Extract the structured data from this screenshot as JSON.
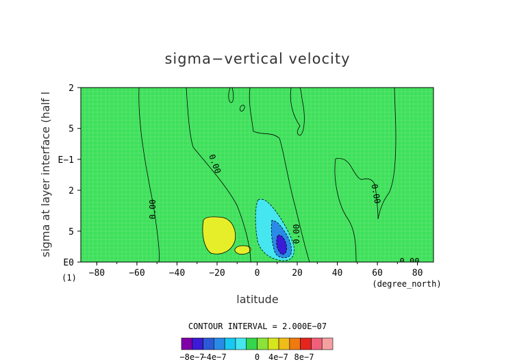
{
  "chart_data": {
    "type": "heatmap",
    "title": "sigma−vertical velocity",
    "xlabel": "latitude",
    "ylabel": "sigma at layer interface (half l",
    "x_unit": "(degree_north)",
    "y_unit": "(1)",
    "x_ticks": [
      "−80",
      "−60",
      "−40",
      "−20",
      "0",
      "20",
      "40",
      "60",
      "80"
    ],
    "x_tick_values": [
      -80,
      -60,
      -40,
      -20,
      0,
      20,
      40,
      60,
      80
    ],
    "xlim": [
      -88,
      88
    ],
    "y_ticks": [
      "2",
      "5",
      "E−1",
      "2",
      "5",
      "E0"
    ],
    "y_tick_values": [
      0.02,
      0.05,
      0.1,
      0.2,
      0.5,
      1.0
    ],
    "ylim": [
      0.02,
      1.0
    ],
    "y_scale": "log",
    "grid": true,
    "contour_interval_text": "CONTOUR INTERVAL = 2.000E−07",
    "contour_labels": [
      "0.00",
      "0.00",
      "0.00",
      "0.00",
      "0.00",
      "0.00"
    ],
    "colorbar": {
      "colors": [
        "#7f00a8",
        "#3b1bd6",
        "#2c5ad6",
        "#2a8be6",
        "#18c8f0",
        "#46e6f0",
        "#33d64d",
        "#8ae23a",
        "#d6e61e",
        "#f0bc1a",
        "#f07a10",
        "#e6241e",
        "#f0607a",
        "#f5a0a0"
      ],
      "tick_labels": [
        "−8e−7",
        "−4e−7",
        "0",
        "4e−7",
        "8e−7"
      ]
    },
    "colors": {
      "background_field": "#3ee05a",
      "positive_field": "#e6ee2a",
      "negative_light": "#46e6f0",
      "negative_mid": "#2a8be6",
      "negative_dark": "#3b1bd6"
    }
  }
}
